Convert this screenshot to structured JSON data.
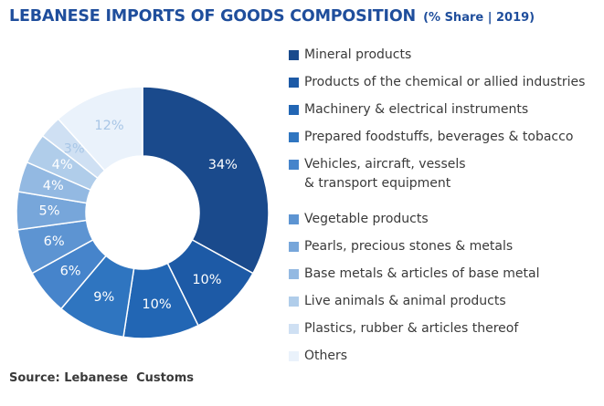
{
  "title": "LEBANESE IMPORTS OF GOODS COMPOSITION",
  "subtitle": "(% Share | 2019)",
  "source": "Source: Lebanese  Customs",
  "chart_data": {
    "type": "pie",
    "donut": true,
    "title": "LEBANESE IMPORTS OF GOODS COMPOSITION",
    "subtitle": "(% Share | 2019)",
    "legend_position": "right",
    "categories": [
      "Mineral products",
      "Products of the chemical or allied industries",
      "Machinery & electrical instruments",
      "Prepared foodstuffs, beverages & tobacco",
      "Vehicles, aircraft, vessels\n& transport equipment",
      "Vegetable products",
      "Pearls, precious stones & metals",
      "Base metals & articles of base metal",
      "Live animals & animal products",
      "Plastics, rubber & articles thereof",
      "Others"
    ],
    "values": [
      34,
      10,
      10,
      9,
      6,
      6,
      5,
      4,
      4,
      3,
      12
    ],
    "labels": [
      "34%",
      "10%",
      "10%",
      "9%",
      "6%",
      "6%",
      "5%",
      "4%",
      "4%",
      "3%",
      "12%"
    ],
    "colors": [
      "#1a4a8c",
      "#1d5aa6",
      "#2266b4",
      "#2f75c0",
      "#4684cb",
      "#5d94d2",
      "#77a6da",
      "#93b9e2",
      "#b0cdea",
      "#cfe0f3",
      "#eaf2fb"
    ],
    "label_colors": [
      "#ffffff",
      "#ffffff",
      "#ffffff",
      "#ffffff",
      "#ffffff",
      "#ffffff",
      "#ffffff",
      "#ffffff",
      "#ffffff",
      "#a8c6e6",
      "#a8c6e6"
    ]
  }
}
